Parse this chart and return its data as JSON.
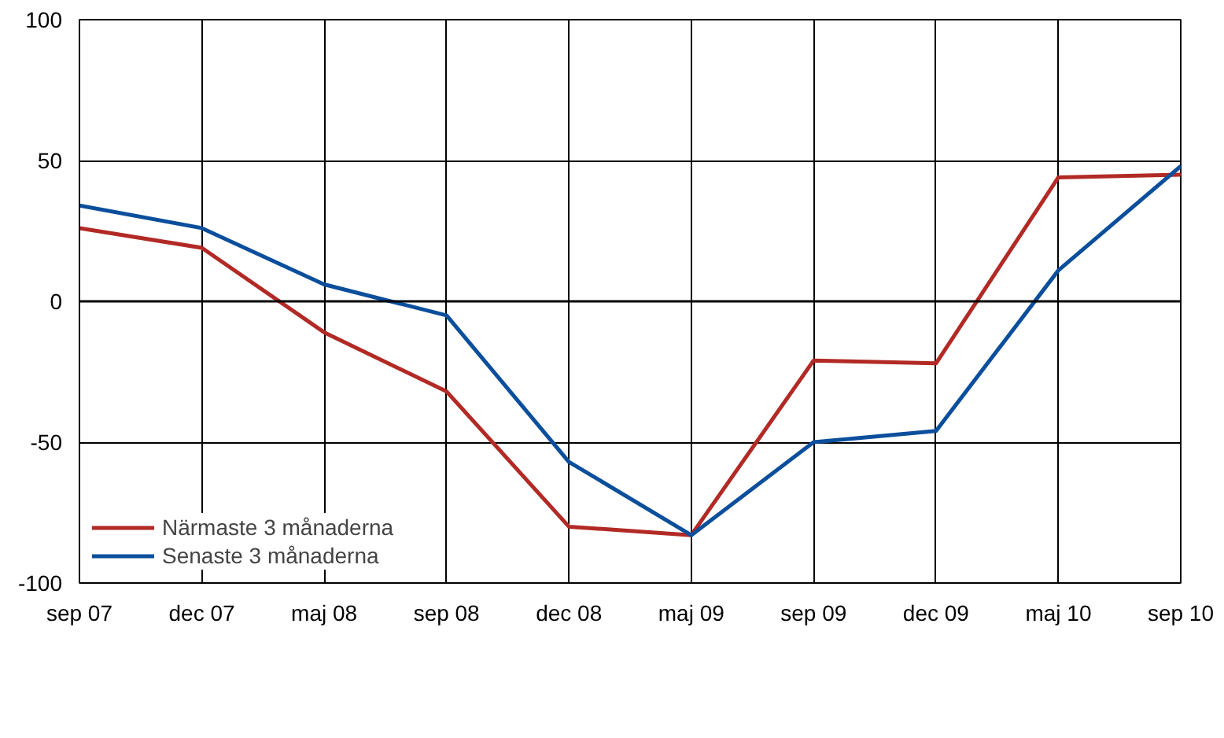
{
  "chart_data": {
    "type": "line",
    "categories": [
      "sep 07",
      "dec 07",
      "maj 08",
      "sep 08",
      "dec 08",
      "maj 09",
      "sep 09",
      "dec 09",
      "maj 10",
      "sep 10"
    ],
    "series": [
      {
        "name": "Närmaste 3 månaderna",
        "color": "#b22a25",
        "values": [
          26,
          19,
          -11,
          -32,
          -80,
          -83,
          -21,
          -22,
          44,
          45
        ]
      },
      {
        "name": "Senaste 3 månaderna",
        "color": "#0b4f9c",
        "values": [
          34,
          26,
          6,
          -5,
          -57,
          -83,
          -50,
          -46,
          11,
          48
        ]
      }
    ],
    "ylim": [
      -100,
      100
    ],
    "yticks": [
      -100,
      -50,
      0,
      50,
      100
    ],
    "grid": true,
    "legend": "bottom left",
    "line_style": "solid",
    "marker": "none",
    "ref_lines": [
      {
        "axis": "y",
        "value": 0,
        "color": "#000000"
      }
    ]
  }
}
